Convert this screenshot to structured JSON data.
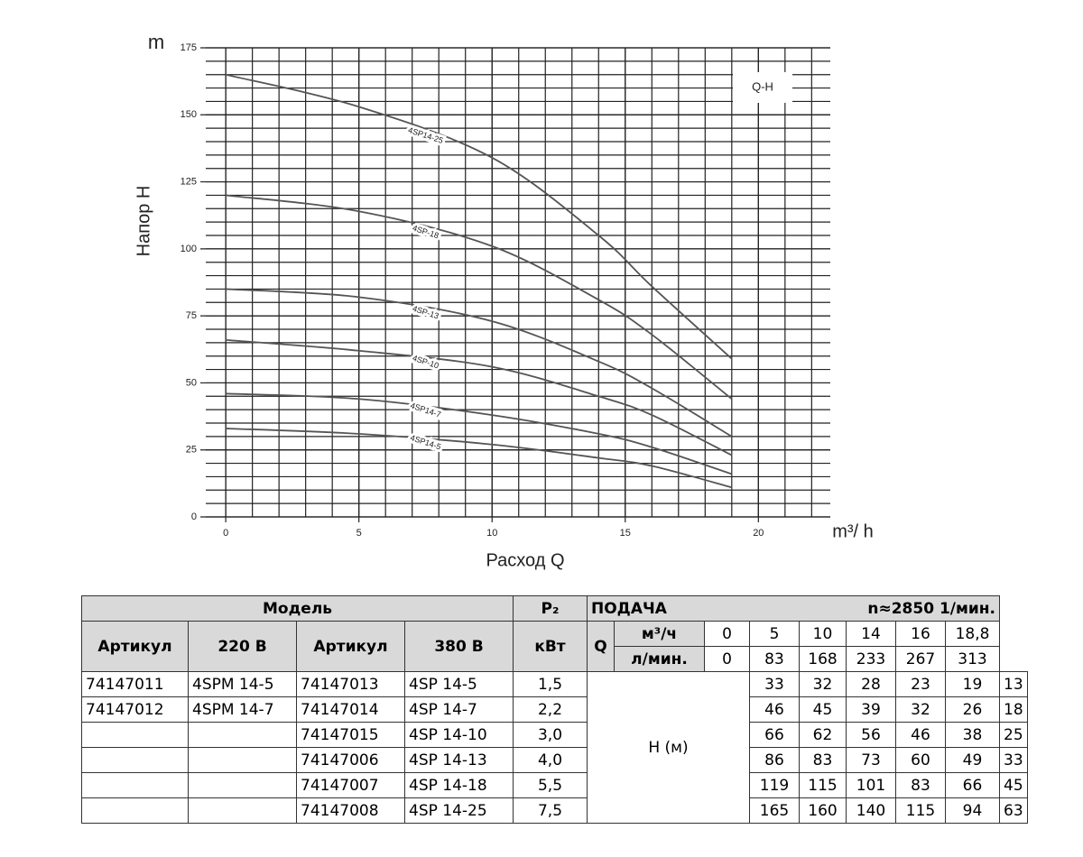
{
  "chart_data": {
    "type": "line",
    "y_unit": "m",
    "y_label": "Напор H",
    "x_label": "Расход Q",
    "x_unit": "m³/ h",
    "box_label": "Q-H",
    "x": [
      0,
      5,
      10,
      14,
      16,
      19
    ],
    "series": [
      {
        "name": "4SP14-25",
        "color": "#555555",
        "values": [
          165,
          153,
          134,
          105,
          86,
          59
        ]
      },
      {
        "name": "4SP-18",
        "color": "#555555",
        "values": [
          120,
          114,
          101,
          81,
          68,
          44
        ]
      },
      {
        "name": "4SP-13",
        "color": "#555555",
        "values": [
          85,
          82,
          73,
          58,
          48,
          30
        ]
      },
      {
        "name": "4SP-10",
        "color": "#555555",
        "values": [
          66,
          62,
          56,
          45,
          38,
          23
        ]
      },
      {
        "name": "4SP14-7",
        "color": "#555555",
        "values": [
          46,
          44,
          38,
          31,
          26,
          16
        ]
      },
      {
        "name": "4SP14-5",
        "color": "#555555",
        "values": [
          33,
          31,
          27,
          22,
          19,
          11
        ]
      }
    ],
    "xlim": [
      -0.75,
      22.7
    ],
    "ylim": [
      0,
      175
    ],
    "xticks": [
      0,
      5,
      10,
      15,
      20
    ],
    "yticks": [
      0,
      25,
      50,
      75,
      100,
      125,
      150,
      175
    ],
    "grid": true
  },
  "table": {
    "model": "Модель",
    "p2": "P₂",
    "supply": "ПОДАЧА",
    "speed": "n≈2850 1/мин.",
    "col_heads": [
      "Артикул",
      "220 В",
      "Артикул",
      "380 В"
    ],
    "p2_unit": "кВт",
    "q": "Q",
    "flow_units": [
      "м³/ч",
      "л/мин."
    ],
    "flow_m3h": [
      0,
      5,
      10,
      14,
      16,
      "18,8"
    ],
    "flow_lmin": [
      0,
      83,
      168,
      233,
      267,
      313
    ],
    "h_label": "H (м)",
    "rows": [
      {
        "art220": "74147011",
        "m220": "4SPM 14-5",
        "art380": "74147013",
        "m380": "4SP 14-5",
        "p2": "1,5",
        "h": [
          33,
          32,
          28,
          23,
          19,
          13
        ]
      },
      {
        "art220": "74147012",
        "m220": "4SPM 14-7",
        "art380": "74147014",
        "m380": "4SP 14-7",
        "p2": "2,2",
        "h": [
          46,
          45,
          39,
          32,
          26,
          18
        ]
      },
      {
        "art380": "74147015",
        "m380": "4SP 14-10",
        "p2": "3,0",
        "h": [
          66,
          62,
          56,
          46,
          38,
          25
        ]
      },
      {
        "art380": "74147006",
        "m380": "4SP 14-13",
        "p2": "4,0",
        "h": [
          86,
          83,
          73,
          60,
          49,
          33
        ]
      },
      {
        "art380": "74147007",
        "m380": "4SP 14-18",
        "p2": "5,5",
        "h": [
          119,
          115,
          101,
          83,
          66,
          45
        ]
      },
      {
        "art380": "74147008",
        "m380": "4SP 14-25",
        "p2": "7,5",
        "h": [
          165,
          160,
          140,
          115,
          94,
          63
        ]
      }
    ]
  }
}
